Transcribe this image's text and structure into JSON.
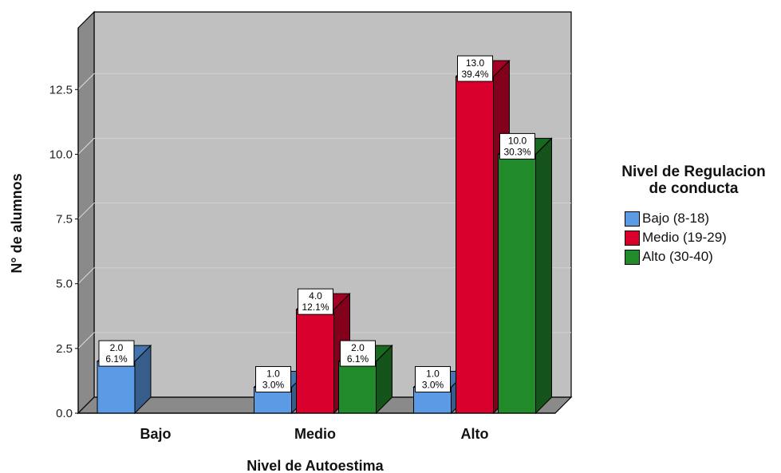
{
  "chart_data": {
    "type": "bar",
    "xlabel": "Nivel de Autoestima",
    "ylabel": "N° de alumnos",
    "categories": [
      "Bajo",
      "Medio",
      "Alto"
    ],
    "ylim": [
      0,
      15
    ],
    "yticks": [
      0.0,
      2.5,
      5.0,
      7.5,
      10.0,
      12.5
    ],
    "ytick_labels": [
      "0.0",
      "2.5",
      "5.0",
      "7.5",
      "10.0",
      "12.5"
    ],
    "grid": true,
    "legend_title": [
      "Nivel de Regulacion",
      "de conducta"
    ],
    "legend_position": "right",
    "series": [
      {
        "name": "Bajo (8-18)",
        "color": "#5b9be6",
        "values": [
          2.0,
          1.0,
          1.0
        ],
        "percents": [
          "6.1%",
          "3.0%",
          "3.0%"
        ]
      },
      {
        "name": "Medio (19-29)",
        "color": "#d9002e",
        "values": [
          null,
          4.0,
          13.0
        ],
        "percents": [
          null,
          "12.1%",
          "39.4%"
        ]
      },
      {
        "name": "Alto (30-40)",
        "color": "#218a2a",
        "values": [
          null,
          2.0,
          10.0
        ],
        "percents": [
          null,
          "6.1%",
          "30.3%"
        ]
      }
    ]
  }
}
